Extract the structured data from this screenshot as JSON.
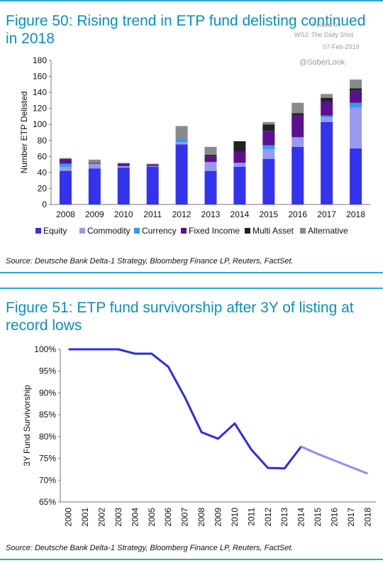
{
  "watermark": {
    "posted_on": "Posted on",
    "publisher": "WSJ: The Daily Shot",
    "date": "07-Feb-2019",
    "handle": "@SoberLook"
  },
  "figure50": {
    "title_line1": "Figure 50: Rising trend in ETP fund delisting continued",
    "title_line2": "in 2018",
    "source": "Source: Deutsche Bank Delta-1 Strategy, Bloomberg Finance LP, Reuters, FactSet."
  },
  "figure51": {
    "title_line1": "Figure 51: ETP fund survivorship after 3Y of listing at",
    "title_line2": "record lows",
    "source": "Source: Deutsche Bank Delta-1 Strategy, Bloomberg Finance LP, Reuters, FactSet."
  },
  "chart_data": [
    {
      "type": "bar",
      "stacked": true,
      "categories": [
        "2008",
        "2009",
        "2010",
        "2011",
        "2012",
        "2013",
        "2014",
        "2015",
        "2016",
        "2017",
        "2018"
      ],
      "ylabel": "Number ETP Delisted",
      "ylim": [
        0,
        180
      ],
      "yticks": [
        0,
        20,
        40,
        60,
        80,
        100,
        120,
        140,
        160,
        180
      ],
      "legend": "bottom",
      "series": [
        {
          "name": "Equity",
          "color": "#3333ee",
          "values": [
            42,
            45,
            46,
            47,
            75,
            42,
            47,
            57,
            72,
            103,
            70
          ]
        },
        {
          "name": "Commodity",
          "color": "#9999ee",
          "values": [
            5,
            6,
            2,
            1,
            3,
            11,
            5,
            12,
            12,
            6,
            51
          ]
        },
        {
          "name": "Currency",
          "color": "#3399ee",
          "values": [
            4,
            0,
            0,
            0,
            4,
            0,
            0,
            5,
            0,
            2,
            6
          ]
        },
        {
          "name": "Fixed Income",
          "color": "#5c1090",
          "values": [
            6,
            1,
            3,
            2,
            0,
            7,
            14,
            18,
            27,
            18,
            15
          ]
        },
        {
          "name": "Multi Asset",
          "color": "#222222",
          "values": [
            0,
            0,
            0,
            0,
            0,
            2,
            13,
            8,
            3,
            4,
            3
          ]
        },
        {
          "name": "Alternative",
          "color": "#8a8a8a",
          "values": [
            1,
            4,
            1,
            1,
            16,
            10,
            0,
            3,
            13,
            5,
            11
          ]
        }
      ]
    },
    {
      "type": "line",
      "x": [
        "2000",
        "2001",
        "2002",
        "2003",
        "2004",
        "2005",
        "2006",
        "2007",
        "2008",
        "2009",
        "2010",
        "2011",
        "2012",
        "2013",
        "2014",
        "2015",
        "2016",
        "2017",
        "2018"
      ],
      "ylabel": "3Y Fund Survivorship",
      "ylim": [
        65,
        100
      ],
      "yticks": [
        65,
        70,
        75,
        80,
        85,
        90,
        95,
        100
      ],
      "ytick_labels": [
        "65%",
        "70%",
        "75%",
        "80%",
        "85%",
        "90%",
        "95%",
        "100%"
      ],
      "series": [
        {
          "values": [
            100,
            100,
            100,
            100,
            99,
            99,
            96,
            89,
            81,
            79.5,
            83,
            77,
            72.8,
            72.7,
            77.7,
            76,
            74.5,
            73,
            71.5
          ],
          "color": "#2b2bee",
          "projected_from_index": 14,
          "projected_color": "#8f8ff0"
        }
      ]
    }
  ]
}
